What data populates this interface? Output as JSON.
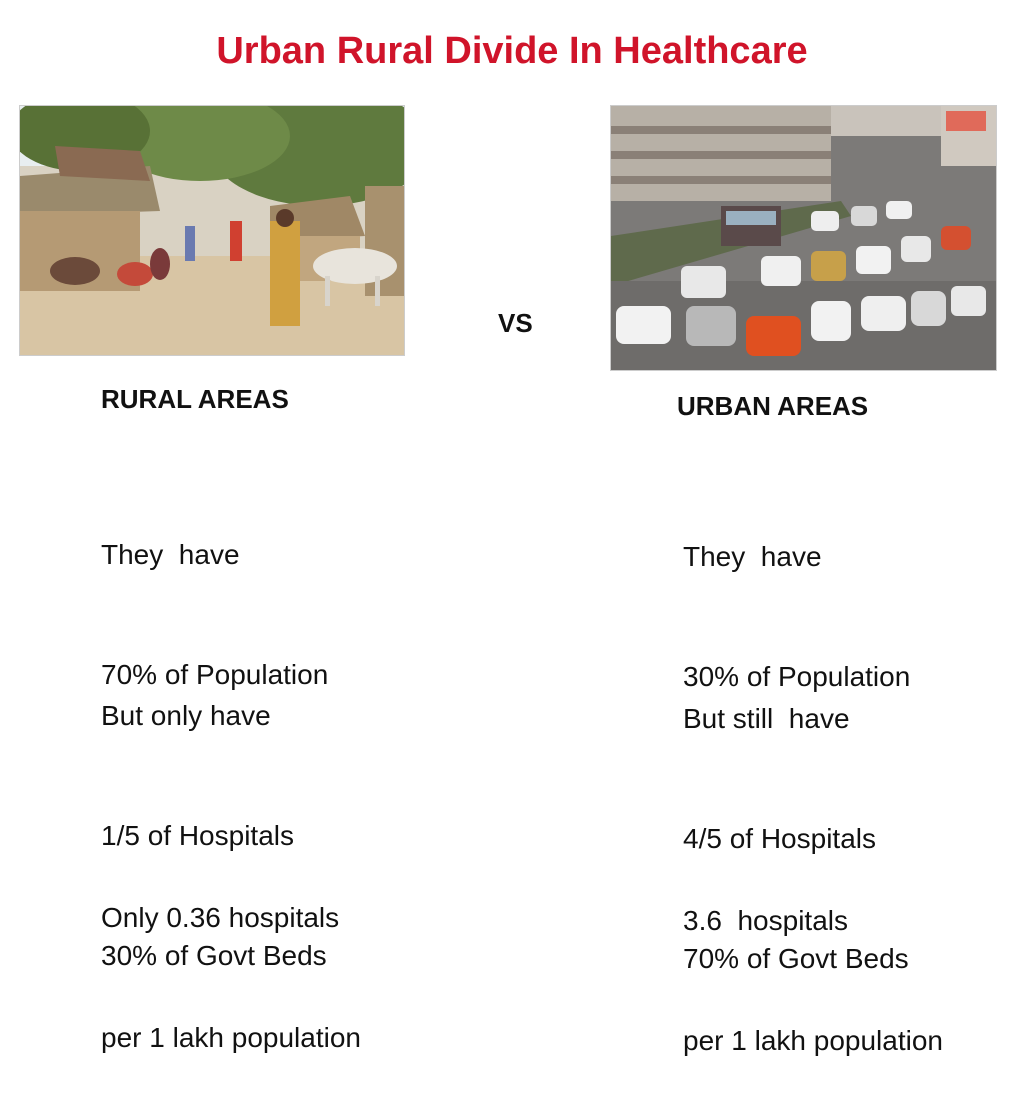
{
  "title": "Urban Rural Divide In Healthcare",
  "vs_label": "VS",
  "rural": {
    "heading": "RURAL AREAS",
    "image": "rural-village-photo",
    "lines": {
      "population_1": "They  have",
      "population_2": "70% of Population",
      "facilities_1": "But only have",
      "facilities_2": "1/5 of Hospitals",
      "facilities_3": "30% of Govt Beds",
      "ratio_1": "Only 0.36 hospitals",
      "ratio_2": "per 1 lakh population"
    }
  },
  "urban": {
    "heading": "URBAN AREAS",
    "image": "urban-traffic-photo",
    "lines": {
      "population_1": "They  have",
      "population_2": "30% of Population",
      "facilities_1": "But still  have",
      "facilities_2": "4/5 of Hospitals",
      "facilities_3": "70% of Govt Beds",
      "ratio_1": "3.6  hospitals",
      "ratio_2": "per 1 lakh population"
    }
  },
  "colors": {
    "title": "#d0142a",
    "text": "#111111",
    "background": "#ffffff"
  }
}
